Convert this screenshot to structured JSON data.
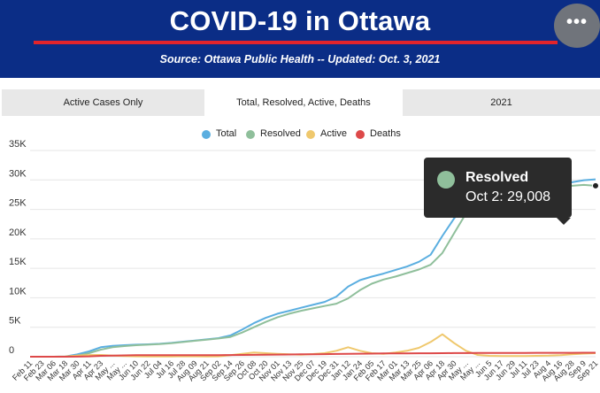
{
  "header": {
    "title": "COVID-19 in Ottawa",
    "subtitle": "Source:  Ottawa Public Health -- Updated:  Oct. 3, 2021",
    "menu_icon": "more-horizontal-icon",
    "menu_label": "•••"
  },
  "tabs": [
    {
      "label": "Active Cases Only",
      "active": false
    },
    {
      "label": "Total, Resolved, Active, Deaths",
      "active": true
    },
    {
      "label": "2021",
      "active": false
    }
  ],
  "legend": [
    {
      "name": "Total",
      "color": "#5aaee0"
    },
    {
      "name": "Resolved",
      "color": "#8fbf9b"
    },
    {
      "name": "Active",
      "color": "#efc86d"
    },
    {
      "name": "Deaths",
      "color": "#dd4949"
    }
  ],
  "tooltip": {
    "series": "Resolved",
    "text": "Oct 2: 29,008",
    "color": "#8fbf9b"
  },
  "chart_data": {
    "type": "line",
    "ylim": [
      0,
      35000
    ],
    "yticks": [
      {
        "label": "0",
        "value": 0
      },
      {
        "label": "5K",
        "value": 5000
      },
      {
        "label": "10K",
        "value": 10000
      },
      {
        "label": "15K",
        "value": 15000
      },
      {
        "label": "20K",
        "value": 20000
      },
      {
        "label": "25K",
        "value": 25000
      },
      {
        "label": "30K",
        "value": 30000
      },
      {
        "label": "35K",
        "value": 35000
      }
    ],
    "x_tick_labels": [
      "Feb 11",
      "Feb 23",
      "Mar 06",
      "Mar 18",
      "Mar 30",
      "Apr 11",
      "Apr 23",
      "May ...",
      "May ...",
      "Jun 10",
      "Jun 22",
      "Jul 04",
      "Jul 16",
      "Jul 28",
      "Aug 09",
      "Aug 21",
      "Sep 02",
      "Sep 14",
      "Sep 26",
      "Oct 08",
      "Oct 20",
      "Nov 01",
      "Nov 13",
      "Nov 25",
      "Dec 07",
      "Dec 19",
      "Dec 31",
      "Jan 12",
      "Jan 24",
      "Feb 05",
      "Feb 17",
      "Mar 01",
      "Mar 13",
      "Mar 25",
      "Apr 06",
      "Apr 18",
      "Apr 30",
      "May ...",
      "May ...",
      "Jun 5",
      "Jun 17",
      "Jun 29",
      "Jul 11",
      "Jul 23",
      "Aug 4",
      "Aug 16",
      "Aug 28",
      "Sep 9",
      "Sep 21"
    ],
    "series": [
      {
        "name": "Total",
        "color": "#5aaee0",
        "values": [
          0,
          0,
          0,
          50,
          400,
          900,
          1600,
          1850,
          1950,
          2050,
          2100,
          2200,
          2350,
          2550,
          2750,
          2950,
          3150,
          3600,
          4600,
          5700,
          6600,
          7300,
          7800,
          8300,
          8800,
          9300,
          10200,
          11900,
          13000,
          13600,
          14100,
          14700,
          15300,
          16100,
          17300,
          20500,
          23500,
          26000,
          27000,
          27600,
          27900,
          28200,
          28400,
          28700,
          28900,
          29200,
          29600,
          29950,
          30100
        ]
      },
      {
        "name": "Resolved",
        "color": "#8fbf9b",
        "values": [
          0,
          0,
          0,
          20,
          200,
          600,
          1200,
          1600,
          1800,
          1950,
          2050,
          2150,
          2300,
          2500,
          2700,
          2900,
          3100,
          3350,
          4100,
          5000,
          5900,
          6700,
          7300,
          7800,
          8200,
          8600,
          9000,
          9900,
          11300,
          12400,
          13100,
          13600,
          14200,
          14800,
          15600,
          17600,
          21000,
          24300,
          26500,
          27300,
          27700,
          28000,
          28250,
          28500,
          28700,
          28850,
          29000,
          29150,
          29008
        ]
      },
      {
        "name": "Active",
        "color": "#efc86d",
        "values": [
          0,
          0,
          0,
          30,
          200,
          280,
          300,
          200,
          100,
          60,
          40,
          40,
          50,
          70,
          60,
          50,
          60,
          250,
          500,
          700,
          600,
          500,
          400,
          350,
          450,
          600,
          1000,
          1600,
          1000,
          600,
          500,
          700,
          1000,
          1500,
          2500,
          3800,
          2300,
          1000,
          300,
          150,
          120,
          110,
          120,
          150,
          180,
          250,
          400,
          520,
          600
        ]
      },
      {
        "name": "Deaths",
        "color": "#dd4949",
        "values": [
          0,
          0,
          0,
          0,
          10,
          60,
          150,
          200,
          230,
          250,
          260,
          265,
          265,
          270,
          270,
          270,
          275,
          285,
          300,
          320,
          340,
          360,
          380,
          400,
          420,
          440,
          460,
          480,
          510,
          530,
          550,
          560,
          570,
          580,
          590,
          600,
          610,
          620,
          630,
          640,
          645,
          650,
          650,
          655,
          660,
          660,
          665,
          670,
          670
        ]
      }
    ]
  }
}
